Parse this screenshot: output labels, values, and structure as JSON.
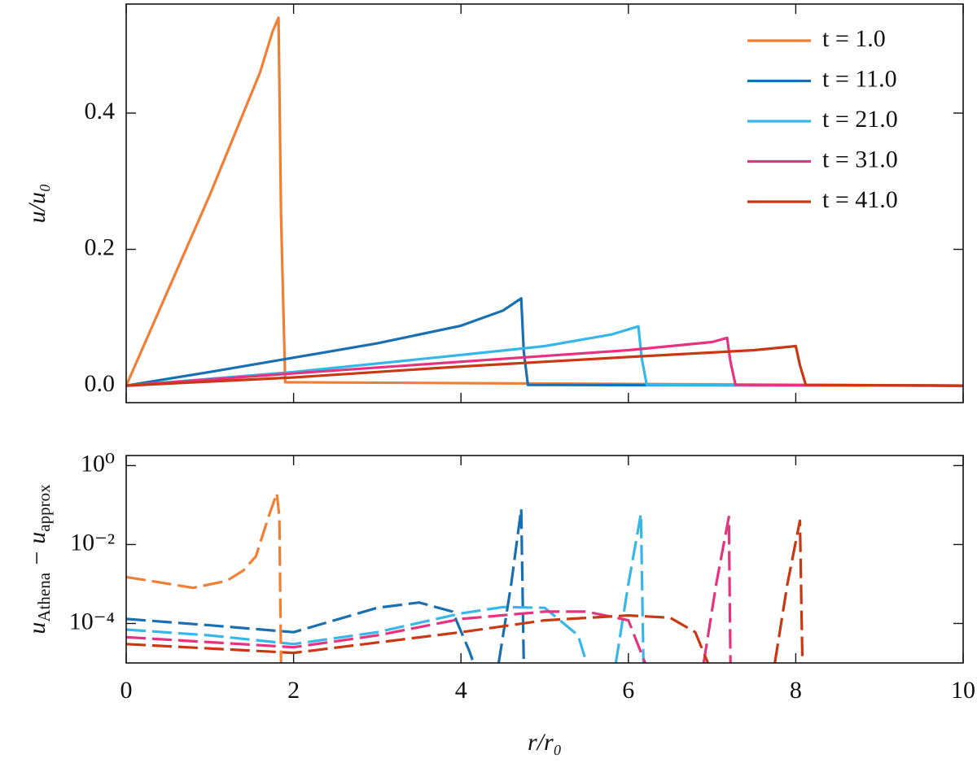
{
  "chart_data": [
    {
      "type": "line",
      "ylabel": "u/u₀",
      "xlim": [
        0,
        10
      ],
      "xticks": [
        0,
        2,
        4,
        6,
        8,
        10
      ],
      "ylim": [
        -0.025,
        0.56
      ],
      "yticks": [
        {
          "value": 0,
          "label": "0.0"
        },
        0.2,
        0.4
      ],
      "legend": "upper right",
      "series": [
        {
          "name": "t = 1.0",
          "color": "#f07f33",
          "x": [
            0,
            0.5,
            1.0,
            1.4,
            1.6,
            1.75,
            1.82,
            1.85,
            1.9,
            10
          ],
          "values": [
            0,
            0.14,
            0.28,
            0.4,
            0.46,
            0.52,
            0.54,
            0.25,
            0.005,
            0
          ]
        },
        {
          "name": "t = 11.0",
          "color": "#1a6fb0",
          "x": [
            0,
            1,
            2,
            3,
            4,
            4.5,
            4.72,
            4.75,
            4.8,
            10
          ],
          "values": [
            0,
            0.02,
            0.041,
            0.062,
            0.088,
            0.11,
            0.128,
            0.05,
            0.001,
            0
          ]
        },
        {
          "name": "t = 21.0",
          "color": "#37b7e8",
          "x": [
            0,
            2,
            4,
            5,
            5.8,
            6.12,
            6.16,
            6.22,
            10
          ],
          "values": [
            0,
            0.02,
            0.045,
            0.058,
            0.075,
            0.087,
            0.04,
            0.001,
            0
          ]
        },
        {
          "name": "t = 31.0",
          "color": "#e5337f",
          "x": [
            0,
            2,
            4,
            6,
            7,
            7.18,
            7.22,
            7.28,
            10
          ],
          "values": [
            0,
            0.018,
            0.035,
            0.052,
            0.064,
            0.07,
            0.035,
            0.001,
            0
          ]
        },
        {
          "name": "t = 41.0",
          "color": "#c93812",
          "x": [
            0,
            2,
            4,
            6,
            7.5,
            8.0,
            8.05,
            8.12,
            10
          ],
          "values": [
            0,
            0.012,
            0.028,
            0.042,
            0.052,
            0.058,
            0.03,
            0.001,
            0
          ]
        }
      ]
    },
    {
      "type": "line",
      "xlabel": "r/r₀",
      "ylabel": [
        "u",
        "Athena",
        " − u",
        "approx"
      ],
      "xlim": [
        0,
        10
      ],
      "xticks": [
        0,
        2,
        4,
        6,
        8,
        10
      ],
      "ylim": [
        1e-05,
        1.8
      ],
      "log_y": true,
      "yticks": [
        {
          "value": 1,
          "label": "10⁰"
        },
        {
          "value": 0.01,
          "label": "10⁻²"
        },
        {
          "value": 0.0001,
          "label": "10⁻⁴"
        }
      ],
      "series": [
        {
          "color": "#f07f33",
          "x": [
            0,
            0.4,
            0.8,
            1.2,
            1.4,
            1.55,
            1.7,
            1.8,
            1.83,
            1.85
          ],
          "values": [
            0.0015,
            0.0011,
            0.0008,
            0.0012,
            0.0022,
            0.005,
            0.05,
            0.2,
            0.05,
            1e-05
          ]
        },
        {
          "color": "#1a6fb0",
          "x": [
            0,
            1,
            2,
            3,
            3.5,
            3.9,
            4.1,
            4.15,
            4.3,
            4.45,
            4.6,
            4.72,
            4.75
          ],
          "values": [
            0.00013,
            9e-05,
            6e-05,
            0.00025,
            0.00034,
            0.0002,
            2e-05,
            1e-05,
            null,
            1e-05,
            0.001,
            0.08,
            1e-05
          ]
        },
        {
          "color": "#37b7e8",
          "x": [
            0,
            1,
            2,
            3,
            4,
            4.5,
            5,
            5.4,
            5.5,
            5.7,
            5.85,
            6.0,
            6.15,
            6.18
          ],
          "values": [
            7e-05,
            5e-05,
            3e-05,
            6e-05,
            0.00018,
            0.00026,
            0.00025,
            5e-05,
            1e-05,
            null,
            1e-05,
            0.001,
            0.06,
            1e-05
          ]
        },
        {
          "color": "#e5337f",
          "x": [
            0,
            2,
            3,
            4,
            5,
            5.5,
            6,
            6.2,
            6.5,
            6.9,
            7.05,
            7.2,
            7.22
          ],
          "values": [
            4.5e-05,
            2.5e-05,
            5e-05,
            0.00013,
            0.0002,
            0.0002,
            0.00012,
            1e-05,
            null,
            1e-05,
            0.001,
            0.05,
            1e-05
          ]
        },
        {
          "color": "#c93812",
          "x": [
            0,
            2,
            4,
            5,
            6,
            6.5,
            6.8,
            6.95,
            7.3,
            7.75,
            7.9,
            8.05,
            8.08
          ],
          "values": [
            3e-05,
            1.8e-05,
            6e-05,
            0.00012,
            0.00016,
            0.00014,
            6e-05,
            1e-05,
            null,
            1e-05,
            0.001,
            0.04,
            1e-05
          ]
        }
      ]
    }
  ]
}
